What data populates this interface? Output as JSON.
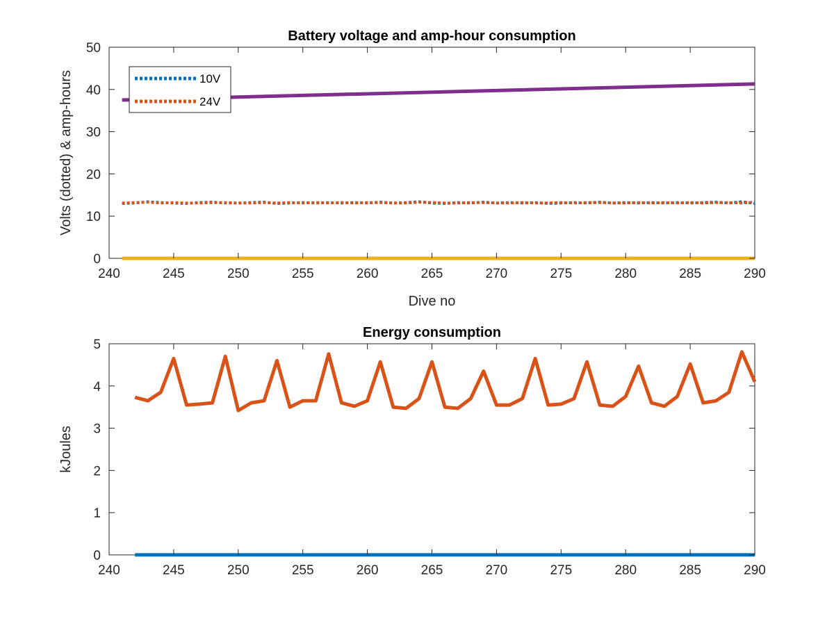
{
  "chart_data": [
    {
      "type": "line",
      "title": "Battery voltage and amp-hour consumption",
      "xlabel": "Dive no",
      "ylabel": "Volts (dotted) & amp-hours",
      "xlim": [
        240,
        290
      ],
      "ylim": [
        0,
        50
      ],
      "xticks": [
        240,
        245,
        250,
        255,
        260,
        265,
        270,
        275,
        280,
        285,
        290
      ],
      "yticks": [
        0,
        10,
        20,
        30,
        40,
        50
      ],
      "grid": false,
      "legend_position": "top-left",
      "series": [
        {
          "name": "10V",
          "style": "dotted",
          "color": "#0072BD",
          "x": [
            241,
            242,
            243,
            244,
            245,
            246,
            247,
            248,
            249,
            250,
            251,
            252,
            253,
            254,
            255,
            256,
            257,
            258,
            259,
            260,
            261,
            262,
            263,
            264,
            265,
            266,
            267,
            268,
            269,
            270,
            271,
            272,
            273,
            274,
            275,
            276,
            277,
            278,
            279,
            280,
            281,
            282,
            283,
            284,
            285,
            286,
            287,
            288,
            289,
            290
          ],
          "values": [
            13.0,
            13.1,
            13.4,
            13.2,
            13.1,
            13.0,
            13.2,
            13.3,
            13.1,
            13.1,
            13.2,
            13.3,
            13.0,
            13.1,
            13.2,
            13.1,
            13.2,
            13.1,
            13.2,
            13.1,
            13.3,
            13.1,
            13.2,
            13.4,
            13.1,
            13.0,
            13.2,
            13.1,
            13.3,
            13.1,
            13.2,
            13.1,
            13.2,
            13.0,
            13.1,
            13.2,
            13.1,
            13.3,
            13.1,
            13.2,
            13.1,
            13.2,
            13.1,
            13.2,
            13.1,
            13.2,
            13.3,
            13.1,
            13.4,
            13.0
          ]
        },
        {
          "name": "24V",
          "style": "dotted",
          "color": "#D95319",
          "x": [
            241,
            242,
            243,
            244,
            245,
            246,
            247,
            248,
            249,
            250,
            251,
            252,
            253,
            254,
            255,
            256,
            257,
            258,
            259,
            260,
            261,
            262,
            263,
            264,
            265,
            266,
            267,
            268,
            269,
            270,
            271,
            272,
            273,
            274,
            275,
            276,
            277,
            278,
            279,
            280,
            281,
            282,
            283,
            284,
            285,
            286,
            287,
            288,
            289,
            290
          ],
          "values": [
            13.1,
            13.2,
            13.3,
            13.1,
            13.2,
            13.1,
            13.1,
            13.2,
            13.2,
            13.1,
            13.1,
            13.2,
            13.1,
            13.2,
            13.1,
            13.2,
            13.1,
            13.2,
            13.1,
            13.2,
            13.2,
            13.1,
            13.1,
            13.3,
            13.2,
            13.1,
            13.1,
            13.2,
            13.2,
            13.1,
            13.1,
            13.2,
            13.1,
            13.1,
            13.2,
            13.1,
            13.2,
            13.2,
            13.1,
            13.1,
            13.2,
            13.1,
            13.2,
            13.1,
            13.2,
            13.1,
            13.2,
            13.2,
            13.1,
            13.3
          ]
        },
        {
          "style": "solid",
          "color": "#7E2F8E",
          "x": [
            241,
            290
          ],
          "values": [
            37.5,
            41.3
          ]
        },
        {
          "style": "solid",
          "color": "#EDB120",
          "x": [
            241,
            290
          ],
          "values": [
            0,
            0
          ]
        }
      ]
    },
    {
      "type": "line",
      "title": "Energy consumption",
      "xlabel": "",
      "ylabel": "kJoules",
      "xlim": [
        240,
        290
      ],
      "ylim": [
        0,
        5
      ],
      "xticks": [
        240,
        245,
        250,
        255,
        260,
        265,
        270,
        275,
        280,
        285,
        290
      ],
      "yticks": [
        0,
        1,
        2,
        3,
        4,
        5
      ],
      "grid": false,
      "series": [
        {
          "style": "solid",
          "color": "#D95319",
          "x": [
            242,
            243,
            244,
            245,
            246,
            247,
            248,
            249,
            250,
            251,
            252,
            253,
            254,
            255,
            256,
            257,
            258,
            259,
            260,
            261,
            262,
            263,
            264,
            265,
            266,
            267,
            268,
            269,
            270,
            271,
            272,
            273,
            274,
            275,
            276,
            277,
            278,
            279,
            280,
            281,
            282,
            283,
            284,
            285,
            286,
            287,
            288,
            289,
            290
          ],
          "values": [
            3.73,
            3.65,
            3.85,
            4.65,
            3.55,
            3.57,
            3.6,
            4.7,
            3.42,
            3.6,
            3.65,
            4.6,
            3.5,
            3.65,
            3.65,
            4.76,
            3.6,
            3.52,
            3.65,
            4.57,
            3.5,
            3.47,
            3.7,
            4.57,
            3.5,
            3.47,
            3.7,
            4.35,
            3.55,
            3.55,
            3.7,
            4.65,
            3.55,
            3.57,
            3.7,
            4.57,
            3.55,
            3.52,
            3.75,
            4.47,
            3.6,
            3.52,
            3.75,
            4.52,
            3.6,
            3.65,
            3.85,
            4.81,
            4.1
          ]
        },
        {
          "style": "solid",
          "color": "#0072BD",
          "x": [
            242,
            290
          ],
          "values": [
            0,
            0
          ]
        }
      ]
    }
  ]
}
